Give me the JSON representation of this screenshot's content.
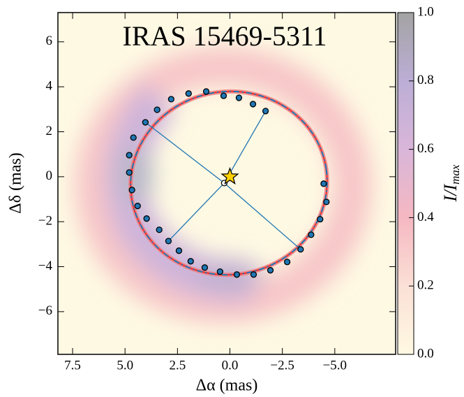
{
  "chart_data": {
    "type": "scatter",
    "title": "IRAS 15469-5311",
    "x_label": "Δα (mas)",
    "y_label": "Δδ (mas)",
    "colorbar_label": {
      "base": "I/I",
      "sub": "max"
    },
    "xlim": [
      8.2,
      -7.9
    ],
    "ylim": [
      -7.9,
      7.3
    ],
    "xticks": [
      {
        "value": 7.5,
        "label": "7.5"
      },
      {
        "value": 5.0,
        "label": "5.0"
      },
      {
        "value": 2.5,
        "label": "2.5"
      },
      {
        "value": 0,
        "label": "0.0"
      },
      {
        "value": -2.5,
        "label": "−2.5"
      },
      {
        "value": -5.0,
        "label": "−5.0"
      }
    ],
    "yticks": [
      {
        "value": -6,
        "label": "−6"
      },
      {
        "value": -4,
        "label": "−4"
      },
      {
        "value": -2,
        "label": "−2"
      },
      0,
      2,
      4,
      6
    ],
    "clim": [
      0,
      1
    ],
    "cticks": [
      {
        "value": 0,
        "label": "0.0"
      },
      0.2,
      0.4,
      0.6,
      0.8,
      {
        "value": 1,
        "label": "1.0"
      }
    ],
    "star": {
      "x": 0,
      "y": 0
    },
    "center": {
      "x": 0.27,
      "y": -0.28
    },
    "series": [
      {
        "color": "#1f77b4",
        "x": [
          4.03,
          3.47,
          2.8,
          1.97,
          1.13,
          0.3,
          -0.43,
          -1.1,
          -1.7,
          4.6,
          4.8,
          4.8,
          4.67,
          4.4,
          3.97,
          3.37,
          2.93,
          2.43,
          1.87,
          1.2,
          0.47,
          -0.33,
          -1.13,
          -1.93,
          -2.73,
          -3.37,
          -3.87,
          -4.3,
          -4.6,
          -4.47
        ],
        "y": [
          2.42,
          2.98,
          3.45,
          3.7,
          3.79,
          3.6,
          3.51,
          3.23,
          2.92,
          1.74,
          0.96,
          0.19,
          -0.59,
          -1.3,
          -1.86,
          -2.36,
          -2.86,
          -3.29,
          -3.76,
          -4.04,
          -4.22,
          -4.35,
          -4.35,
          -4.16,
          -3.79,
          -3.23,
          -2.58,
          -1.89,
          -1.12,
          -0.31
        ]
      }
    ]
  }
}
